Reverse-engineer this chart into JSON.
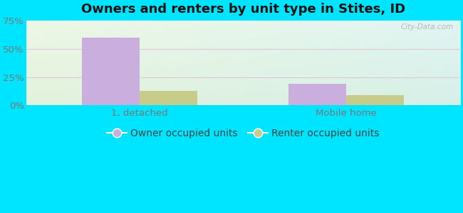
{
  "title": "Owners and renters by unit type in Stites, ID",
  "categories": [
    "1, detached",
    "Mobile home"
  ],
  "owner_values": [
    60,
    19
  ],
  "renter_values": [
    13,
    9
  ],
  "owner_color": "#c9aede",
  "renter_color": "#c8cc8a",
  "ylim": [
    0,
    75
  ],
  "yticks": [
    0,
    25,
    50,
    75
  ],
  "ytick_labels": [
    "0%",
    "25%",
    "50%",
    "75%"
  ],
  "background_color": "#00e5ff",
  "title_fontsize": 13,
  "tick_fontsize": 9.5,
  "legend_fontsize": 10,
  "bar_width": 0.28,
  "watermark": "City-Data.com",
  "grid_color": "#e8d8e8",
  "tick_color": "#777777",
  "bg_colors": [
    "#deeedd",
    "#d8eee8",
    "#e4f0f0",
    "#d0ecec"
  ]
}
